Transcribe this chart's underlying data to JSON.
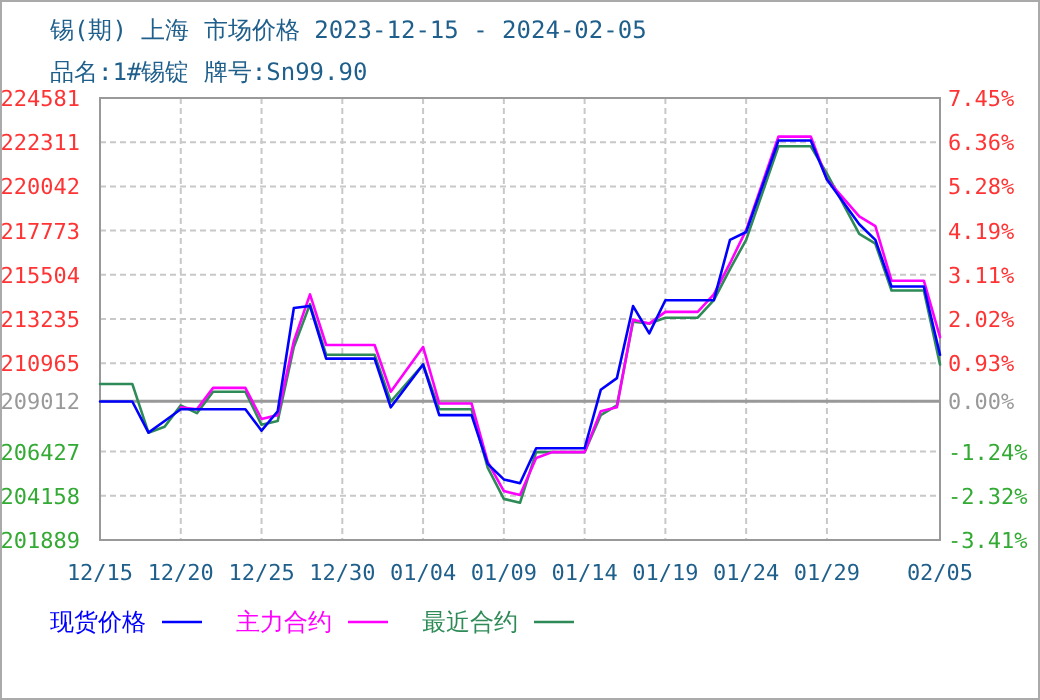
{
  "chart_data": {
    "type": "line",
    "title": "锡(期) 上海 市场价格 2023-12-15 - 2024-02-05",
    "subtitle": "品名:1#锡锭 牌号:Sn99.90",
    "x": [
      "2023-12-15",
      "2023-12-17",
      "2023-12-18",
      "2023-12-19",
      "2023-12-20",
      "2023-12-21",
      "2023-12-22",
      "2023-12-24",
      "2023-12-25",
      "2023-12-26",
      "2023-12-27",
      "2023-12-28",
      "2023-12-29",
      "2024-01-01",
      "2024-01-02",
      "2024-01-04",
      "2024-01-05",
      "2024-01-07",
      "2024-01-08",
      "2024-01-09",
      "2024-01-10",
      "2024-01-11",
      "2024-01-12",
      "2024-01-14",
      "2024-01-15",
      "2024-01-16",
      "2024-01-17",
      "2024-01-18",
      "2024-01-19",
      "2024-01-21",
      "2024-01-22",
      "2024-01-23",
      "2024-01-24",
      "2024-01-26",
      "2024-01-28",
      "2024-01-29",
      "2024-01-31",
      "2024-02-01",
      "2024-02-02",
      "2024-02-04",
      "2024-02-05"
    ],
    "series": [
      {
        "name": "现货价格",
        "color": "#0000ff",
        "values": [
          209000,
          209000,
          207400,
          208000,
          208600,
          208600,
          208600,
          208600,
          207500,
          208500,
          213800,
          213900,
          211200,
          211200,
          208700,
          210900,
          208300,
          208300,
          205800,
          205000,
          204800,
          206600,
          206600,
          206600,
          209600,
          210200,
          213900,
          212500,
          214200,
          214200,
          214200,
          217300,
          217700,
          222400,
          222400,
          220400,
          218100,
          217300,
          214900,
          214900,
          211400
        ]
      },
      {
        "name": "主力合约",
        "color": "#ff00ff",
        "values": [
          null,
          null,
          null,
          null,
          208700,
          208600,
          209700,
          209700,
          208100,
          208300,
          212100,
          214500,
          211900,
          211900,
          209500,
          211800,
          208900,
          208900,
          205900,
          204400,
          204200,
          206100,
          206400,
          206400,
          208500,
          208700,
          213200,
          213000,
          213600,
          213600,
          214500,
          216100,
          217800,
          222600,
          222600,
          220400,
          218500,
          218000,
          215200,
          215200,
          212300
        ]
      },
      {
        "name": "最近合约",
        "color": "#2e8b57",
        "values": [
          209900,
          209900,
          207400,
          207700,
          208800,
          208400,
          209500,
          209500,
          207800,
          208000,
          211800,
          214000,
          211400,
          211400,
          209000,
          210900,
          208600,
          208600,
          205600,
          204000,
          203800,
          206400,
          206400,
          206400,
          208300,
          208800,
          213100,
          213000,
          213300,
          213300,
          214200,
          215800,
          217300,
          222100,
          222100,
          220700,
          217600,
          217100,
          214700,
          214700,
          210900
        ]
      }
    ],
    "xlim": [
      "2023-12-15",
      "2024-02-05"
    ],
    "xticks": [
      {
        "value": "2023-12-15",
        "label": "12/15"
      },
      {
        "value": "2023-12-20",
        "label": "12/20"
      },
      {
        "value": "2023-12-25",
        "label": "12/25"
      },
      {
        "value": "2023-12-30",
        "label": "12/30"
      },
      {
        "value": "2024-01-04",
        "label": "01/04"
      },
      {
        "value": "2024-01-09",
        "label": "01/09"
      },
      {
        "value": "2024-01-14",
        "label": "01/14"
      },
      {
        "value": "2024-01-19",
        "label": "01/19"
      },
      {
        "value": "2024-01-24",
        "label": "01/24"
      },
      {
        "value": "2024-01-29",
        "label": "01/29"
      },
      {
        "value": "2024-02-05",
        "label": "02/05"
      }
    ],
    "ylim": [
      201889,
      224581
    ],
    "yticks": [
      201889,
      204158,
      206427,
      209012,
      210965,
      213235,
      215504,
      217773,
      220042,
      222311,
      224581
    ],
    "y2lim": [
      -3.41,
      7.45
    ],
    "y2ticks": [
      {
        "value": -3.41,
        "label": "-3.41%"
      },
      {
        "value": -2.32,
        "label": "-2.32%"
      },
      {
        "value": -1.24,
        "label": "-1.24%"
      },
      {
        "value": 0,
        "label": "0.00%"
      },
      {
        "value": 0.93,
        "label": "0.93%"
      },
      {
        "value": 2.02,
        "label": "2.02%"
      },
      {
        "value": 3.11,
        "label": "3.11%"
      },
      {
        "value": 4.19,
        "label": "4.19%"
      },
      {
        "value": 5.28,
        "label": "5.28%"
      },
      {
        "value": 6.36,
        "label": "6.36%"
      },
      {
        "value": 7.45,
        "label": "7.45%"
      }
    ],
    "ref_lines": [
      {
        "axis": "y",
        "value": 209012,
        "color": "#999999"
      }
    ],
    "grid": true,
    "legend": "bottom",
    "line_style": "solid"
  }
}
